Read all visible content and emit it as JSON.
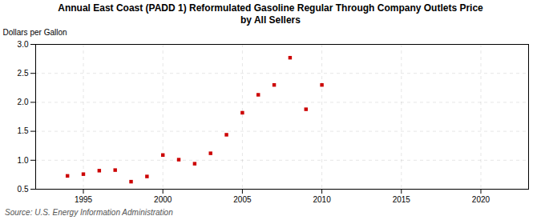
{
  "chart_data": {
    "type": "scatter",
    "title": "Annual East Coast (PADD 1) Reformulated Gasoline Regular Through Company Outlets Price\nby All Sellers",
    "ylabel": "Dollars per Gallon",
    "source": "Source: U.S. Energy Information Administration",
    "x": [
      1994,
      1995,
      1996,
      1997,
      1998,
      1999,
      2000,
      2001,
      2002,
      2003,
      2004,
      2005,
      2006,
      2007,
      2008,
      2009,
      2010
    ],
    "values": [
      0.73,
      0.76,
      0.82,
      0.83,
      0.63,
      0.72,
      1.09,
      1.01,
      0.94,
      1.12,
      1.44,
      1.82,
      2.13,
      2.3,
      2.77,
      1.88,
      2.3
    ],
    "color": "#cc0000",
    "marker": "square",
    "xlim": [
      1992,
      2023
    ],
    "xticks": [
      1995,
      2000,
      2005,
      2010,
      2015,
      2020
    ],
    "ylim": [
      0.5,
      3.0
    ],
    "yticks": [
      0.5,
      {
        "value": 1.0,
        "label": "1.0"
      },
      1.5,
      {
        "value": 2.0,
        "label": "2.0"
      },
      2.5,
      {
        "value": 3.0,
        "label": "3.0"
      }
    ],
    "grid": true
  }
}
